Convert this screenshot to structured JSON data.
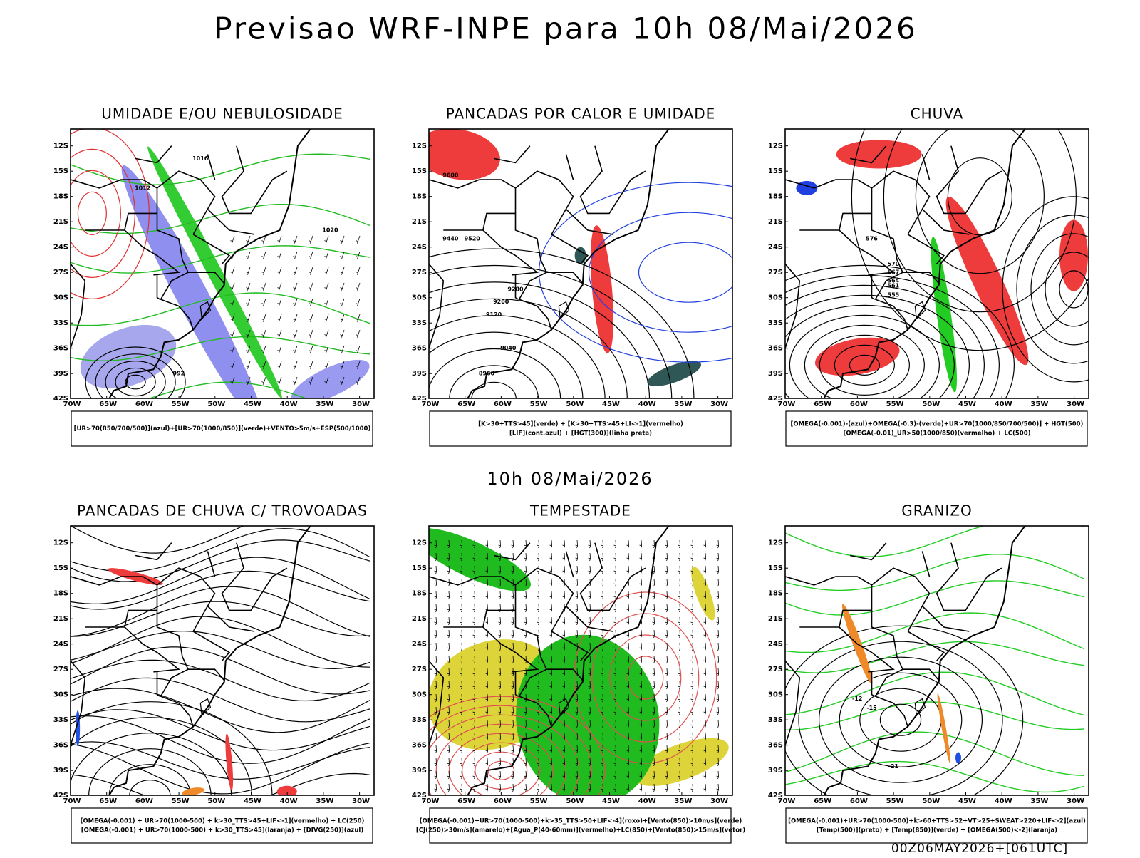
{
  "title": "Previsao WRF-INPE  para 10h 08/Mai/2026",
  "subtitle": "10h 08/Mai/2026",
  "footer": "00Z06MAY2026+[061UTC]",
  "lat_labels": [
    "12S",
    "15S",
    "18S",
    "21S",
    "24S",
    "27S",
    "30S",
    "33S",
    "36S",
    "39S",
    "42S"
  ],
  "lon_labels": [
    "70W",
    "65W",
    "60W",
    "55W",
    "50W",
    "45W",
    "40W",
    "35W",
    "30W"
  ],
  "panels": [
    {
      "title": "UMIDADE E/OU NEBULOSIDADE",
      "legend": [
        "[UR>70(850/700/500)](azul)+[UR>70(1000/850)](verde)+VENTO>5m/s+ESP(500/1000)"
      ],
      "contour_labels": [
        "1016",
        "1012",
        "1020",
        "992"
      ]
    },
    {
      "title": "PANCADAS POR CALOR E UMIDADE",
      "legend": [
        "[K>30+TTS>45](verde) + [K>30+TTS>45+LI<-1](vermelho)",
        "[LIF](cont.azul) + [HGT(300)](linha preta)"
      ],
      "contour_labels": [
        "9600",
        "9520",
        "9440",
        "9280",
        "9200",
        "9120",
        "9040",
        "8960"
      ]
    },
    {
      "title": "CHUVA",
      "legend": [
        "[OMEGA(-0.001)-(azul)+OMEGA(-0.3)-(verde)+UR>70(1000/850/700/500)] + HGT(500)",
        "[OMEGA(-0.01)_UR>50(1000/850)(vermelho) + LC(500)"
      ],
      "contour_labels": [
        "576",
        "570",
        "567",
        "564",
        "561",
        "555"
      ]
    },
    {
      "title": "PANCADAS DE CHUVA C/ TROVOADAS",
      "legend": [
        "[OMEGA(-0.001) + UR>70(1000-500) + k>30_TTS>45+LIF<-1](vermelho) + LC(250)",
        "[OMEGA(-0.001) + UR>70(1000-500) + k>30_TTS>45](laranja) + [DIVG(250)](azul)"
      ],
      "contour_labels": []
    },
    {
      "title": "TEMPESTADE",
      "legend": [
        "[OMEGA(-0.001)+UR>70(1000-500)+k>35_TTS>50+LIF<-4](roxo)+[Vento(850)>10m/s](verde)",
        "[CJ(250)>30m/s](amarelo)+[Agua_P(40-60mm)](vermelho)+LC(850)+[Vento(850)>15m/s](vetor)"
      ],
      "contour_labels": []
    },
    {
      "title": "GRANIZO",
      "legend": [
        "[OMEGA(-0.001)+UR>70(1000-500)+k>60+TTS>52+VT>25+SWEAT>220+LIF<-2](azul)",
        "[Temp(500)](preto) + [Temp(850)](verde) + [OMEGA(500)<-2](laranja)"
      ],
      "contour_labels": [
        "-12",
        "-15",
        "-21"
      ]
    }
  ]
}
